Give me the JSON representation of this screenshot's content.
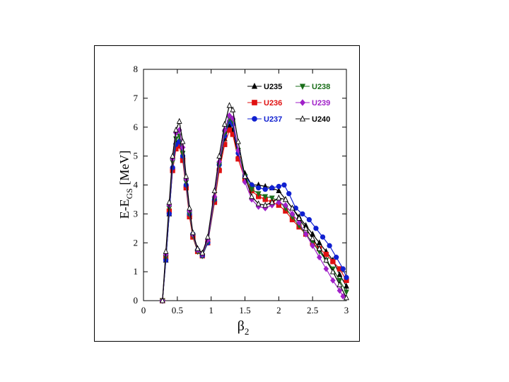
{
  "chart_data": {
    "type": "line",
    "title": "",
    "xlabel_main": "β",
    "xlabel_sub": "2",
    "ylabel_main": "E-E",
    "ylabel_sub": "GS",
    "ylabel_unit": "[MeV]",
    "xlim": [
      0,
      3
    ],
    "ylim": [
      0,
      8
    ],
    "x_ticks": [
      0,
      0.5,
      1,
      1.5,
      2,
      2.5,
      3
    ],
    "x_tick_labels": [
      "0",
      "0.5",
      "1",
      "1.5",
      "2",
      "2.5",
      "3"
    ],
    "y_ticks": [
      0,
      1,
      2,
      3,
      4,
      5,
      6,
      7,
      8
    ],
    "y_tick_labels": [
      "0",
      "1",
      "2",
      "3",
      "4",
      "5",
      "6",
      "7",
      "8"
    ],
    "legend_position": "top-right",
    "series": [
      {
        "name": "U235",
        "color": "#000000",
        "marker": "triangle-up",
        "filled": true,
        "points": [
          [
            0.28,
            0
          ],
          [
            0.33,
            1.4
          ],
          [
            0.38,
            3.0
          ],
          [
            0.43,
            4.6
          ],
          [
            0.48,
            5.5
          ],
          [
            0.53,
            5.55
          ],
          [
            0.58,
            5.0
          ],
          [
            0.63,
            4.0
          ],
          [
            0.68,
            3.0
          ],
          [
            0.73,
            2.3
          ],
          [
            0.8,
            1.8
          ],
          [
            0.87,
            1.6
          ],
          [
            0.95,
            2.1
          ],
          [
            1.05,
            3.5
          ],
          [
            1.12,
            4.6
          ],
          [
            1.2,
            5.6
          ],
          [
            1.27,
            6.05
          ],
          [
            1.32,
            5.9
          ],
          [
            1.4,
            5.0
          ],
          [
            1.5,
            4.4
          ],
          [
            1.6,
            4.0
          ],
          [
            1.7,
            4.0
          ],
          [
            1.8,
            3.95
          ],
          [
            1.9,
            3.9
          ],
          [
            2.0,
            3.8
          ],
          [
            2.1,
            3.5
          ],
          [
            2.2,
            3.2
          ],
          [
            2.3,
            2.9
          ],
          [
            2.4,
            2.6
          ],
          [
            2.5,
            2.3
          ],
          [
            2.6,
            2.0
          ],
          [
            2.7,
            1.7
          ],
          [
            2.8,
            1.4
          ],
          [
            2.9,
            0.9
          ],
          [
            3.0,
            0.5
          ]
        ]
      },
      {
        "name": "U236",
        "color": "#e01010",
        "marker": "square",
        "filled": true,
        "points": [
          [
            0.28,
            0
          ],
          [
            0.33,
            1.5
          ],
          [
            0.38,
            3.1
          ],
          [
            0.43,
            4.5
          ],
          [
            0.48,
            5.25
          ],
          [
            0.53,
            5.35
          ],
          [
            0.58,
            4.85
          ],
          [
            0.63,
            3.9
          ],
          [
            0.68,
            2.9
          ],
          [
            0.73,
            2.2
          ],
          [
            0.8,
            1.7
          ],
          [
            0.87,
            1.55
          ],
          [
            0.95,
            2.0
          ],
          [
            1.05,
            3.4
          ],
          [
            1.12,
            4.5
          ],
          [
            1.2,
            5.4
          ],
          [
            1.27,
            5.9
          ],
          [
            1.32,
            5.75
          ],
          [
            1.4,
            4.9
          ],
          [
            1.5,
            4.2
          ],
          [
            1.6,
            3.8
          ],
          [
            1.7,
            3.6
          ],
          [
            1.8,
            3.5
          ],
          [
            1.9,
            3.4
          ],
          [
            2.0,
            3.3
          ],
          [
            2.1,
            3.1
          ],
          [
            2.2,
            2.8
          ],
          [
            2.3,
            2.55
          ],
          [
            2.4,
            2.3
          ],
          [
            2.5,
            2.0
          ],
          [
            2.6,
            1.8
          ],
          [
            2.7,
            1.6
          ],
          [
            2.8,
            1.35
          ],
          [
            2.9,
            1.1
          ],
          [
            3.0,
            0.7
          ]
        ]
      },
      {
        "name": "U237",
        "color": "#1020d0",
        "marker": "circle",
        "filled": true,
        "points": [
          [
            0.28,
            0
          ],
          [
            0.33,
            1.4
          ],
          [
            0.38,
            3.0
          ],
          [
            0.43,
            4.6
          ],
          [
            0.48,
            5.4
          ],
          [
            0.53,
            5.5
          ],
          [
            0.58,
            5.0
          ],
          [
            0.63,
            4.0
          ],
          [
            0.68,
            3.0
          ],
          [
            0.73,
            2.3
          ],
          [
            0.8,
            1.75
          ],
          [
            0.87,
            1.55
          ],
          [
            0.95,
            2.0
          ],
          [
            1.05,
            3.5
          ],
          [
            1.12,
            4.7
          ],
          [
            1.2,
            5.7
          ],
          [
            1.27,
            6.2
          ],
          [
            1.32,
            6.1
          ],
          [
            1.4,
            5.1
          ],
          [
            1.5,
            4.3
          ],
          [
            1.6,
            4.0
          ],
          [
            1.7,
            3.9
          ],
          [
            1.8,
            3.85
          ],
          [
            1.9,
            3.9
          ],
          [
            2.0,
            3.95
          ],
          [
            2.08,
            4.0
          ],
          [
            2.15,
            3.7
          ],
          [
            2.25,
            3.2
          ],
          [
            2.35,
            3.0
          ],
          [
            2.45,
            2.8
          ],
          [
            2.55,
            2.5
          ],
          [
            2.65,
            2.2
          ],
          [
            2.75,
            1.9
          ],
          [
            2.85,
            1.5
          ],
          [
            2.95,
            1.1
          ],
          [
            3.0,
            0.8
          ]
        ]
      },
      {
        "name": "U238",
        "color": "#1a6e1a",
        "marker": "triangle-down",
        "filled": true,
        "points": [
          [
            0.28,
            0
          ],
          [
            0.33,
            1.5
          ],
          [
            0.38,
            3.2
          ],
          [
            0.43,
            4.8
          ],
          [
            0.48,
            5.6
          ],
          [
            0.53,
            5.7
          ],
          [
            0.58,
            5.1
          ],
          [
            0.63,
            4.1
          ],
          [
            0.68,
            3.0
          ],
          [
            0.73,
            2.25
          ],
          [
            0.8,
            1.7
          ],
          [
            0.87,
            1.55
          ],
          [
            0.95,
            2.05
          ],
          [
            1.05,
            3.5
          ],
          [
            1.12,
            4.7
          ],
          [
            1.2,
            5.8
          ],
          [
            1.27,
            6.3
          ],
          [
            1.32,
            6.2
          ],
          [
            1.4,
            5.2
          ],
          [
            1.5,
            4.3
          ],
          [
            1.6,
            3.85
          ],
          [
            1.7,
            3.7
          ],
          [
            1.8,
            3.6
          ],
          [
            1.9,
            3.55
          ],
          [
            2.0,
            3.45
          ],
          [
            2.1,
            3.2
          ],
          [
            2.2,
            2.9
          ],
          [
            2.3,
            2.6
          ],
          [
            2.4,
            2.3
          ],
          [
            2.5,
            2.0
          ],
          [
            2.6,
            1.7
          ],
          [
            2.7,
            1.4
          ],
          [
            2.8,
            1.1
          ],
          [
            2.9,
            0.7
          ],
          [
            3.0,
            0.3
          ]
        ]
      },
      {
        "name": "U239",
        "color": "#a020c8",
        "marker": "diamond",
        "filled": true,
        "points": [
          [
            0.28,
            0
          ],
          [
            0.33,
            1.6
          ],
          [
            0.38,
            3.3
          ],
          [
            0.43,
            4.9
          ],
          [
            0.48,
            5.8
          ],
          [
            0.53,
            5.9
          ],
          [
            0.58,
            5.3
          ],
          [
            0.63,
            4.2
          ],
          [
            0.68,
            3.1
          ],
          [
            0.73,
            2.3
          ],
          [
            0.8,
            1.75
          ],
          [
            0.87,
            1.6
          ],
          [
            0.95,
            2.1
          ],
          [
            1.05,
            3.6
          ],
          [
            1.12,
            4.8
          ],
          [
            1.2,
            5.9
          ],
          [
            1.27,
            6.4
          ],
          [
            1.32,
            6.3
          ],
          [
            1.4,
            5.2
          ],
          [
            1.5,
            4.1
          ],
          [
            1.6,
            3.5
          ],
          [
            1.7,
            3.25
          ],
          [
            1.8,
            3.2
          ],
          [
            1.9,
            3.3
          ],
          [
            2.0,
            3.4
          ],
          [
            2.1,
            3.3
          ],
          [
            2.2,
            3.0
          ],
          [
            2.3,
            2.7
          ],
          [
            2.4,
            2.3
          ],
          [
            2.5,
            1.9
          ],
          [
            2.6,
            1.5
          ],
          [
            2.7,
            1.1
          ],
          [
            2.8,
            0.7
          ],
          [
            2.9,
            0.35
          ],
          [
            2.95,
            0.15
          ]
        ]
      },
      {
        "name": "U240",
        "color": "#000000",
        "marker": "triangle-up",
        "filled": false,
        "points": [
          [
            0.28,
            0
          ],
          [
            0.33,
            1.7
          ],
          [
            0.38,
            3.4
          ],
          [
            0.43,
            5.0
          ],
          [
            0.48,
            5.9
          ],
          [
            0.53,
            6.2
          ],
          [
            0.58,
            5.5
          ],
          [
            0.63,
            4.3
          ],
          [
            0.68,
            3.2
          ],
          [
            0.73,
            2.35
          ],
          [
            0.8,
            1.8
          ],
          [
            0.87,
            1.65
          ],
          [
            0.95,
            2.2
          ],
          [
            1.05,
            3.8
          ],
          [
            1.12,
            5.0
          ],
          [
            1.2,
            6.1
          ],
          [
            1.27,
            6.75
          ],
          [
            1.32,
            6.6
          ],
          [
            1.4,
            5.5
          ],
          [
            1.5,
            4.3
          ],
          [
            1.6,
            3.6
          ],
          [
            1.7,
            3.35
          ],
          [
            1.8,
            3.3
          ],
          [
            1.9,
            3.4
          ],
          [
            2.0,
            3.55
          ],
          [
            2.1,
            3.5
          ],
          [
            2.2,
            3.2
          ],
          [
            2.3,
            2.85
          ],
          [
            2.4,
            2.5
          ],
          [
            2.5,
            2.15
          ],
          [
            2.6,
            1.8
          ],
          [
            2.7,
            1.4
          ],
          [
            2.8,
            1.0
          ],
          [
            2.9,
            0.55
          ],
          [
            3.0,
            0.1
          ]
        ]
      }
    ]
  }
}
